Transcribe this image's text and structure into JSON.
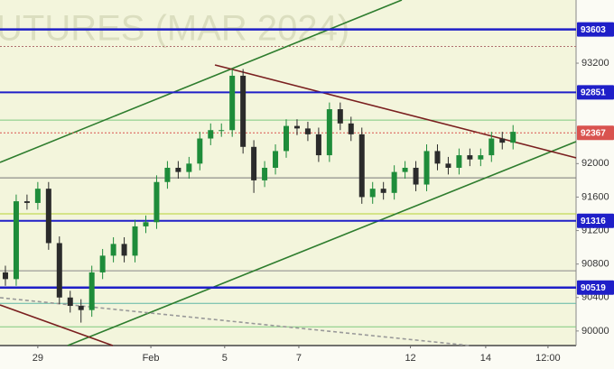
{
  "chart_data": {
    "type": "candlestick",
    "watermark": "UTURES (MAR 2024)",
    "x": [
      1.5,
      4.5,
      7.5,
      10.5,
      13.5,
      16.5,
      19.5,
      22.5,
      25.5,
      28.5,
      31.5,
      34.5,
      37.5,
      40.5,
      43.5,
      46.5,
      49.5,
      52.5,
      55.5,
      58.5,
      61.5,
      64.5,
      67.5,
      70.5,
      73.5,
      76.5,
      79.5,
      82.5,
      85.5,
      88.5,
      91.5,
      94.5,
      97.5,
      100.5,
      103.5,
      106.5,
      109.5,
      112.5,
      115.5,
      118.5,
      121.5,
      124.5,
      127.5,
      130.5,
      133.5,
      136.5,
      139.5,
      142.5
    ],
    "open": [
      90700,
      90620,
      91550,
      91530,
      91700,
      91050,
      90400,
      90300,
      90250,
      90700,
      90900,
      91040,
      90900,
      91250,
      91300,
      91780,
      91950,
      91900,
      92000,
      92300,
      92400,
      92400,
      93050,
      92200,
      91800,
      91950,
      92150,
      92450,
      92420,
      92350,
      92100,
      92650,
      92480,
      92350,
      91600,
      91700,
      91650,
      91900,
      91950,
      91750,
      92150,
      92000,
      91950,
      92100,
      92050,
      92100,
      92300,
      92250
    ],
    "high": [
      90780,
      91630,
      91630,
      91780,
      91780,
      91130,
      90480,
      90380,
      90780,
      90980,
      91120,
      91120,
      91330,
      91380,
      91860,
      92030,
      92030,
      92080,
      92380,
      92480,
      92480,
      93130,
      93130,
      92280,
      92030,
      92230,
      92530,
      92530,
      92500,
      92430,
      92730,
      92730,
      92560,
      92430,
      91780,
      91780,
      91980,
      92030,
      92030,
      92230,
      92230,
      92080,
      92180,
      92180,
      92180,
      92380,
      92380,
      92460
    ],
    "low": [
      90540,
      90540,
      91450,
      91450,
      90970,
      90320,
      90220,
      90100,
      90170,
      90620,
      90820,
      90820,
      90820,
      91170,
      91220,
      91700,
      91820,
      91820,
      91920,
      92220,
      92320,
      92320,
      92120,
      91650,
      91720,
      91870,
      92070,
      92340,
      92270,
      92020,
      92020,
      92400,
      92270,
      91520,
      91520,
      91570,
      91570,
      91820,
      91670,
      91670,
      91920,
      91870,
      91870,
      91970,
      91970,
      92020,
      92170,
      92170
    ],
    "close": [
      90620,
      91550,
      91530,
      91700,
      91050,
      90400,
      90300,
      90250,
      90700,
      90900,
      91040,
      90900,
      91250,
      91300,
      91780,
      91950,
      91900,
      92000,
      92300,
      92400,
      92400,
      93050,
      92200,
      91800,
      91950,
      92150,
      92450,
      92420,
      92350,
      92100,
      92650,
      92480,
      92350,
      91600,
      91700,
      91650,
      91900,
      91950,
      91750,
      92150,
      92000,
      91950,
      92100,
      92050,
      92100,
      92300,
      92250,
      92380
    ],
    "up_color": "#1e8c3a",
    "down_color": "#2b2b2b",
    "xlim": [
      0,
      160
    ],
    "ylim": [
      89826,
      93955
    ],
    "xticks": [
      {
        "value": 10.5,
        "label": "29"
      },
      {
        "value": 41.9,
        "label": "Feb"
      },
      {
        "value": 62.4,
        "label": "5"
      },
      {
        "value": 83,
        "label": "7"
      },
      {
        "value": 114,
        "label": "12"
      },
      {
        "value": 134.9,
        "label": "14"
      },
      {
        "value": 152.2,
        "label": "12:00"
      }
    ],
    "yticks": [
      90000,
      90400,
      90800,
      91200,
      91600,
      92000,
      93200
    ],
    "price_levels": [
      {
        "value": 93603,
        "color": "#1f1fc8",
        "width": 2.5,
        "dash": false
      },
      {
        "value": 92851,
        "color": "#1f1fc8",
        "width": 2,
        "dash": false
      },
      {
        "value": 92367,
        "color": "#d9534f",
        "width": 1,
        "dash": true
      },
      {
        "value": 91316,
        "color": "#1f1fc8",
        "width": 2,
        "dash": false
      },
      {
        "value": 90519,
        "color": "#1f1fc8",
        "width": 2.5,
        "dash": false
      }
    ],
    "guide_levels": [
      {
        "value": 93400,
        "color": "#b07070",
        "dash": true
      },
      {
        "value": 92520,
        "color": "#7fc97f",
        "dash": false
      },
      {
        "value": 91830,
        "color": "#777777",
        "dash": false
      },
      {
        "value": 91400,
        "color": "#b5d334",
        "dash": false
      },
      {
        "value": 90720,
        "color": "#888888",
        "dash": false
      },
      {
        "value": 90330,
        "color": "#5fb7a5",
        "dash": false
      },
      {
        "value": 90050,
        "color": "#7fc97f",
        "dash": false
      }
    ],
    "trendlines": [
      {
        "x": [
          0,
          111.6
        ],
        "y": [
          92015,
          93955
        ],
        "color": "#2e7d2e",
        "dash": false
      },
      {
        "x": [
          18.8,
          160
        ],
        "y": [
          89826,
          92263
        ],
        "color": "#2e7d2e",
        "dash": false
      },
      {
        "x": [
          59.7,
          160
        ],
        "y": [
          93179,
          92069
        ],
        "color": "#7a1f1f",
        "dash": false
      },
      {
        "x": [
          0,
          31.3
        ],
        "y": [
          90311,
          89826
        ],
        "color": "#7a1f1f",
        "dash": false
      },
      {
        "x": [
          0,
          130.4
        ],
        "y": [
          90398,
          89826
        ],
        "color": "#999999",
        "dash": true
      }
    ]
  }
}
